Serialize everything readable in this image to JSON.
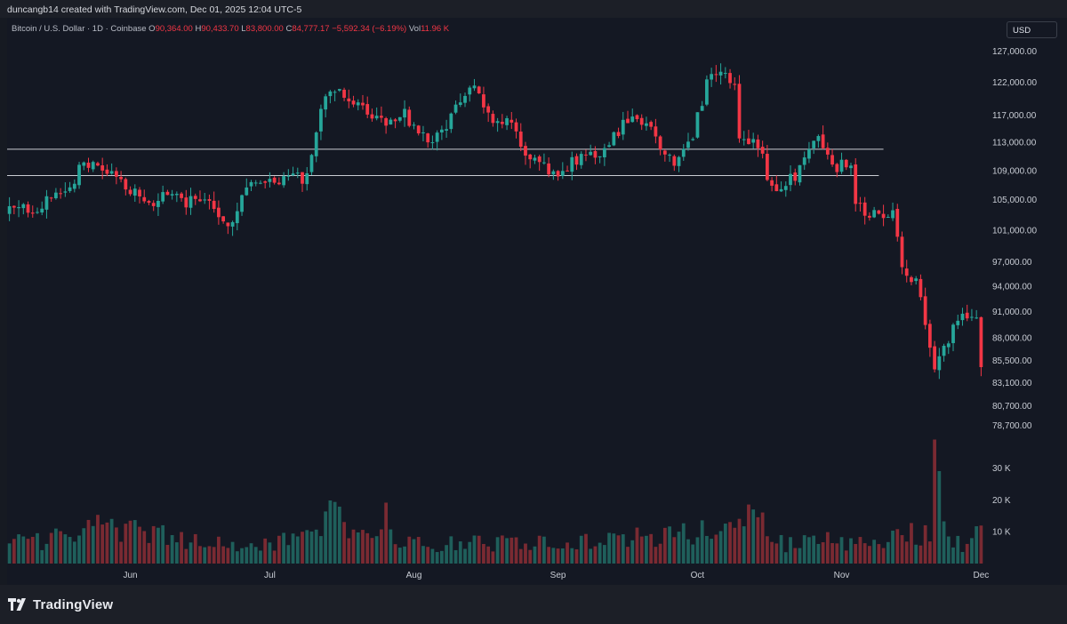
{
  "header": {
    "creator": "duncangb14 created with TradingView.com, Dec 01, 2025 12:04 UTC-5"
  },
  "legend": {
    "symbol": "Bitcoin / U.S. Dollar · 1D · Coinbase",
    "o_label": "O",
    "o_value": "90,364.00",
    "h_label": "H",
    "h_value": "90,433.70",
    "l_label": "L",
    "l_value": "83,800.00",
    "c_label": "C",
    "c_value": "84,777.17",
    "change": "−5,592.34 (−6.19%)",
    "vol_label": "Vol",
    "vol_value": "11.96 K"
  },
  "currency_button": "USD",
  "footer": {
    "brand": "TradingView"
  },
  "colors": {
    "up": "#26a69a",
    "down": "#f23645",
    "up_volume": "#1f5f5b",
    "down_volume": "#7a2a32",
    "background": "#141823",
    "axis_text": "#c8ccd4",
    "hline": "#c9ccd3"
  },
  "chart_data": {
    "type": "candlestick",
    "title": "Bitcoin / U.S. Dollar · 1D · Coinbase",
    "price_axis": {
      "scale": "log",
      "range": [
        77500,
        131000
      ],
      "ticks": [
        "127,000.00",
        "122,000.00",
        "117,000.00",
        "113,000.00",
        "109,000.00",
        "105,000.00",
        "101,000.00",
        "97,000.00",
        "94,000.00",
        "91,000.00",
        "88,000.00",
        "85,500.00",
        "83,100.00",
        "80,700.00",
        "78,700.00"
      ]
    },
    "volume_axis": {
      "range": [
        0,
        33000
      ],
      "ticks": [
        "30 K",
        "20 K",
        "10 K"
      ],
      "tick_values": [
        30000,
        20000,
        10000
      ]
    },
    "x_axis": {
      "start_date": "2025-05-06",
      "end_date": "2025-12-01",
      "labels": [
        {
          "label": "Jun",
          "date": "2025-06-01"
        },
        {
          "label": "Jul",
          "date": "2025-07-01"
        },
        {
          "label": "Aug",
          "date": "2025-08-01"
        },
        {
          "label": "Sep",
          "date": "2025-09-01"
        },
        {
          "label": "Oct",
          "date": "2025-10-01"
        },
        {
          "label": "Nov",
          "date": "2025-11-01"
        },
        {
          "label": "Dec",
          "date": "2025-12-01"
        }
      ]
    },
    "horizontal_lines": [
      {
        "price": 112000,
        "from": "2025-05-06",
        "to": "2025-11-10"
      },
      {
        "price": 108300,
        "from": "2025-05-06",
        "to": "2025-11-09"
      }
    ],
    "close_path": [
      [
        "2025-05-06",
        103500
      ],
      [
        "2025-05-12",
        104000
      ],
      [
        "2025-05-18",
        106000
      ],
      [
        "2025-05-22",
        110000
      ],
      [
        "2025-05-26",
        109000
      ],
      [
        "2025-06-01",
        106500
      ],
      [
        "2025-06-05",
        104000
      ],
      [
        "2025-06-09",
        106000
      ],
      [
        "2025-06-13",
        104500
      ],
      [
        "2025-06-18",
        105500
      ],
      [
        "2025-06-22",
        101500
      ],
      [
        "2025-06-26",
        106500
      ],
      [
        "2025-07-02",
        107500
      ],
      [
        "2025-07-09",
        108000
      ],
      [
        "2025-07-11",
        115000
      ],
      [
        "2025-07-14",
        121000
      ],
      [
        "2025-07-20",
        118500
      ],
      [
        "2025-07-25",
        116000
      ],
      [
        "2025-07-30",
        117500
      ],
      [
        "2025-08-02",
        113500
      ],
      [
        "2025-08-07",
        114000
      ],
      [
        "2025-08-10",
        118500
      ],
      [
        "2025-08-14",
        121000
      ],
      [
        "2025-08-18",
        116500
      ],
      [
        "2025-08-22",
        115500
      ],
      [
        "2025-08-26",
        110500
      ],
      [
        "2025-08-31",
        108500
      ],
      [
        "2025-09-05",
        110500
      ],
      [
        "2025-09-10",
        111500
      ],
      [
        "2025-09-15",
        115500
      ],
      [
        "2025-09-18",
        116500
      ],
      [
        "2025-09-22",
        114000
      ],
      [
        "2025-09-26",
        109500
      ],
      [
        "2025-09-30",
        114000
      ],
      [
        "2025-10-03",
        121500
      ],
      [
        "2025-10-06",
        124500
      ],
      [
        "2025-10-09",
        121500
      ],
      [
        "2025-10-10",
        113000
      ],
      [
        "2025-10-14",
        112500
      ],
      [
        "2025-10-17",
        106500
      ],
      [
        "2025-10-22",
        108000
      ],
      [
        "2025-10-27",
        114500
      ],
      [
        "2025-10-30",
        109500
      ],
      [
        "2025-11-03",
        110000
      ],
      [
        "2025-11-04",
        104000
      ],
      [
        "2025-11-08",
        103000
      ],
      [
        "2025-11-12",
        103500
      ],
      [
        "2025-11-14",
        96000
      ],
      [
        "2025-11-17",
        94500
      ],
      [
        "2025-11-20",
        87000
      ],
      [
        "2025-11-21",
        84500
      ],
      [
        "2025-11-24",
        88000
      ],
      [
        "2025-11-27",
        90500
      ],
      [
        "2025-11-30",
        90364
      ],
      [
        "2025-12-01",
        84777.17
      ]
    ],
    "last_candle": {
      "date": "2025-12-01",
      "open": 90364.0,
      "high": 90433.7,
      "low": 83800.0,
      "close": 84777.17,
      "volume": 11960
    },
    "volume_path": [
      [
        "2025-05-06",
        6000
      ],
      [
        "2025-05-22",
        9000
      ],
      [
        "2025-05-24",
        12000
      ],
      [
        "2025-06-20",
        6000
      ],
      [
        "2025-07-11",
        7500
      ],
      [
        "2025-07-14",
        19000
      ],
      [
        "2025-07-18",
        8000
      ],
      [
        "2025-07-24",
        10500
      ],
      [
        "2025-07-25",
        19500
      ],
      [
        "2025-07-28",
        6500
      ],
      [
        "2025-08-10",
        6000
      ],
      [
        "2025-08-15",
        6500
      ],
      [
        "2025-09-01",
        6000
      ],
      [
        "2025-10-10",
        11000
      ],
      [
        "2025-10-11",
        18000
      ],
      [
        "2025-10-17",
        9500
      ],
      [
        "2025-10-20",
        6000
      ],
      [
        "2025-11-03",
        7500
      ],
      [
        "2025-11-04",
        11000
      ],
      [
        "2025-11-07",
        8500
      ],
      [
        "2025-11-13",
        8000
      ],
      [
        "2025-11-14",
        12500
      ],
      [
        "2025-11-17",
        9500
      ],
      [
        "2025-11-20",
        11000
      ],
      [
        "2025-11-21",
        31000
      ],
      [
        "2025-11-24",
        9000
      ],
      [
        "2025-11-28",
        5000
      ],
      [
        "2025-12-01",
        11960
      ]
    ]
  }
}
